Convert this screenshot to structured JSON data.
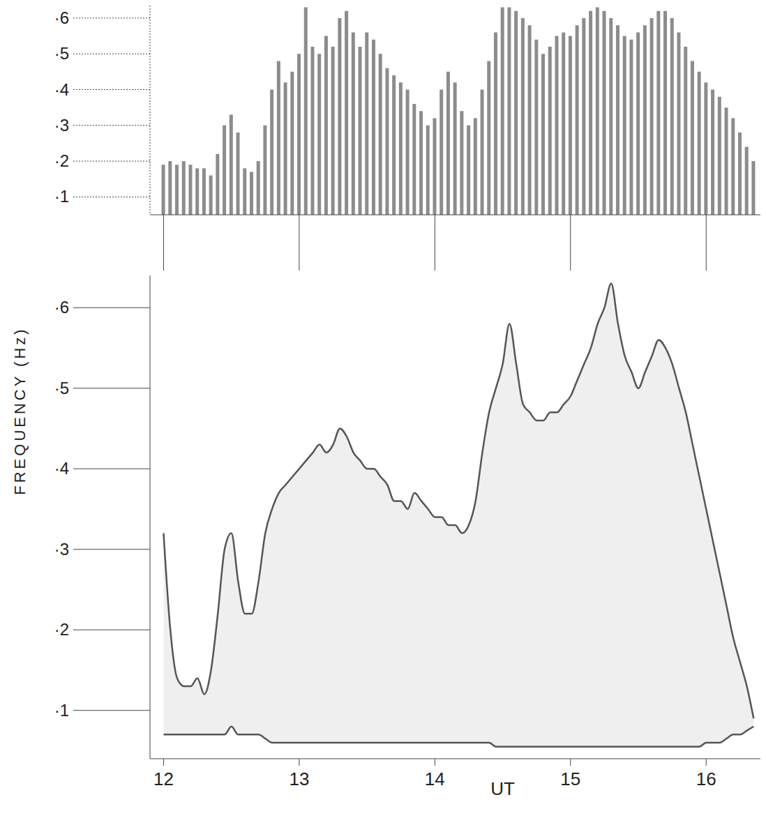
{
  "chart_data": [
    {
      "type": "bar",
      "tick_labels": "y",
      "color": "#8c8c8c",
      "x": [
        12.0,
        12.05,
        12.1,
        12.15,
        12.2,
        12.25,
        12.3,
        12.35,
        12.4,
        12.45,
        12.5,
        12.55,
        12.6,
        12.65,
        12.7,
        12.75,
        12.8,
        12.85,
        12.9,
        12.95,
        13.0,
        13.05,
        13.1,
        13.15,
        13.2,
        13.25,
        13.3,
        13.35,
        13.4,
        13.45,
        13.5,
        13.55,
        13.6,
        13.65,
        13.7,
        13.75,
        13.8,
        13.85,
        13.9,
        13.95,
        14.0,
        14.05,
        14.1,
        14.15,
        14.2,
        14.25,
        14.3,
        14.35,
        14.4,
        14.45,
        14.5,
        14.55,
        14.6,
        14.65,
        14.7,
        14.75,
        14.8,
        14.85,
        14.9,
        14.95,
        15.0,
        15.05,
        15.1,
        15.15,
        15.2,
        15.25,
        15.3,
        15.35,
        15.4,
        15.45,
        15.5,
        15.55,
        15.6,
        15.65,
        15.7,
        15.75,
        15.8,
        15.85,
        15.9,
        15.95,
        16.0,
        16.05,
        16.1,
        16.15,
        16.2,
        16.25,
        16.3,
        16.35
      ],
      "values": [
        0.19,
        0.2,
        0.19,
        0.2,
        0.19,
        0.18,
        0.18,
        0.16,
        0.22,
        0.3,
        0.33,
        0.28,
        0.18,
        0.17,
        0.2,
        0.3,
        0.4,
        0.48,
        0.42,
        0.45,
        0.5,
        0.63,
        0.52,
        0.5,
        0.55,
        0.52,
        0.6,
        0.62,
        0.56,
        0.52,
        0.56,
        0.54,
        0.5,
        0.46,
        0.44,
        0.42,
        0.4,
        0.36,
        0.34,
        0.3,
        0.32,
        0.4,
        0.45,
        0.42,
        0.34,
        0.3,
        0.32,
        0.4,
        0.48,
        0.56,
        0.63,
        0.63,
        0.62,
        0.6,
        0.58,
        0.54,
        0.5,
        0.52,
        0.55,
        0.56,
        0.55,
        0.58,
        0.6,
        0.62,
        0.63,
        0.62,
        0.6,
        0.58,
        0.55,
        0.54,
        0.56,
        0.58,
        0.6,
        0.62,
        0.62,
        0.6,
        0.56,
        0.52,
        0.48,
        0.45,
        0.42,
        0.4,
        0.38,
        0.35,
        0.32,
        0.28,
        0.24,
        0.2
      ],
      "xlim": [
        11.9,
        16.4
      ],
      "xticks": [
        12,
        13,
        14,
        15,
        16
      ],
      "ylim": [
        0.05,
        0.635
      ],
      "yticks": [
        {
          "value": 0.1,
          "label": "·1"
        },
        {
          "value": 0.2,
          "label": "·2"
        },
        {
          "value": 0.3,
          "label": "·3"
        },
        {
          "value": 0.4,
          "label": "·4"
        },
        {
          "value": 0.5,
          "label": "·5"
        },
        {
          "value": 0.6,
          "label": "·6"
        }
      ]
    },
    {
      "type": "area",
      "ylabel": "FREQUENCY   (Hz)",
      "color": "#555555",
      "annotations": [
        {
          "text": "UT",
          "x": 14.5
        }
      ],
      "x": [
        12.0,
        12.05,
        12.1,
        12.15,
        12.2,
        12.25,
        12.3,
        12.35,
        12.4,
        12.45,
        12.5,
        12.55,
        12.6,
        12.65,
        12.7,
        12.75,
        12.8,
        12.85,
        12.9,
        12.95,
        13.0,
        13.05,
        13.1,
        13.15,
        13.2,
        13.25,
        13.3,
        13.35,
        13.4,
        13.45,
        13.5,
        13.55,
        13.6,
        13.65,
        13.7,
        13.75,
        13.8,
        13.85,
        13.9,
        13.95,
        14.0,
        14.05,
        14.1,
        14.15,
        14.2,
        14.25,
        14.3,
        14.35,
        14.4,
        14.45,
        14.5,
        14.55,
        14.6,
        14.65,
        14.7,
        14.75,
        14.8,
        14.85,
        14.9,
        14.95,
        15.0,
        15.05,
        15.1,
        15.15,
        15.2,
        15.25,
        15.3,
        15.35,
        15.4,
        15.45,
        15.5,
        15.55,
        15.6,
        15.65,
        15.7,
        15.75,
        15.8,
        15.85,
        15.9,
        15.95,
        16.0,
        16.05,
        16.1,
        16.15,
        16.2,
        16.25,
        16.3,
        16.35
      ],
      "values": [
        0.32,
        0.2,
        0.14,
        0.13,
        0.13,
        0.14,
        0.12,
        0.15,
        0.22,
        0.3,
        0.32,
        0.26,
        0.22,
        0.22,
        0.26,
        0.32,
        0.35,
        0.37,
        0.38,
        0.39,
        0.4,
        0.41,
        0.42,
        0.43,
        0.42,
        0.43,
        0.45,
        0.44,
        0.42,
        0.41,
        0.4,
        0.4,
        0.39,
        0.38,
        0.36,
        0.36,
        0.35,
        0.37,
        0.36,
        0.35,
        0.34,
        0.34,
        0.33,
        0.33,
        0.32,
        0.33,
        0.36,
        0.42,
        0.47,
        0.5,
        0.53,
        0.58,
        0.53,
        0.48,
        0.47,
        0.46,
        0.46,
        0.47,
        0.47,
        0.48,
        0.49,
        0.51,
        0.53,
        0.55,
        0.58,
        0.6,
        0.63,
        0.58,
        0.54,
        0.52,
        0.5,
        0.52,
        0.54,
        0.56,
        0.55,
        0.53,
        0.5,
        0.47,
        0.43,
        0.39,
        0.35,
        0.31,
        0.27,
        0.23,
        0.19,
        0.16,
        0.13,
        0.09
      ],
      "lower_values": [
        0.07,
        0.07,
        0.07,
        0.07,
        0.07,
        0.07,
        0.07,
        0.07,
        0.07,
        0.07,
        0.08,
        0.07,
        0.07,
        0.07,
        0.07,
        0.065,
        0.06,
        0.06,
        0.06,
        0.06,
        0.06,
        0.06,
        0.06,
        0.06,
        0.06,
        0.06,
        0.06,
        0.06,
        0.06,
        0.06,
        0.06,
        0.06,
        0.06,
        0.06,
        0.06,
        0.06,
        0.06,
        0.06,
        0.06,
        0.06,
        0.06,
        0.06,
        0.06,
        0.06,
        0.06,
        0.06,
        0.06,
        0.06,
        0.06,
        0.055,
        0.055,
        0.055,
        0.055,
        0.055,
        0.055,
        0.055,
        0.055,
        0.055,
        0.055,
        0.055,
        0.055,
        0.055,
        0.055,
        0.055,
        0.055,
        0.055,
        0.055,
        0.055,
        0.055,
        0.055,
        0.055,
        0.055,
        0.055,
        0.055,
        0.055,
        0.055,
        0.055,
        0.055,
        0.055,
        0.055,
        0.06,
        0.06,
        0.06,
        0.065,
        0.07,
        0.07,
        0.075,
        0.08
      ],
      "xlim": [
        11.9,
        16.4
      ],
      "xticks": [
        12,
        13,
        14,
        15,
        16
      ],
      "ylim": [
        0.04,
        0.64
      ],
      "yticks": [
        {
          "value": 0.1,
          "label": "·1"
        },
        {
          "value": 0.2,
          "label": "·2"
        },
        {
          "value": 0.3,
          "label": "·3"
        },
        {
          "value": 0.4,
          "label": "·4"
        },
        {
          "value": 0.5,
          "label": "·5"
        },
        {
          "value": 0.6,
          "label": "·6"
        }
      ]
    }
  ]
}
